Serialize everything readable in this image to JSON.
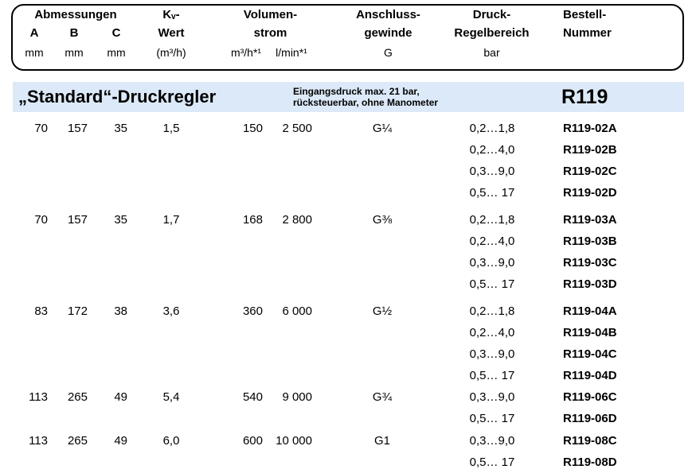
{
  "band": {
    "title": "„Standard“-Druckregler",
    "note_line1": "Eingangsdruck max. 21 bar,",
    "note_line2": "rücksteuerbar, ohne Manometer",
    "series": "R119",
    "bg_color": "#dce9f8"
  },
  "header": {
    "abmessungen": "Abmessungen",
    "dim_a": "A",
    "dim_b": "B",
    "dim_c": "C",
    "dim_a_unit": "mm",
    "dim_b_unit": "mm",
    "dim_c_unit": "mm",
    "kv_line1": "Kᵥ-",
    "kv_line2": "Wert",
    "kv_unit": "(m³/h)",
    "vol_line1": "Volumen-",
    "vol_line2": "strom",
    "vol_unit_m3h": "m³/h*¹",
    "vol_unit_lmin": "l/min*¹",
    "conn_line1": "Anschluss-",
    "conn_line2": "gewinde",
    "conn_unit": "G",
    "druck_line1": "Druck-",
    "druck_line2": "Regelbereich",
    "druck_unit": "bar",
    "best_line1": "Bestell-",
    "best_line2": "Nummer"
  },
  "groups": [
    {
      "A": "70",
      "B": "157",
      "C": "35",
      "kv": "1,5",
      "m3h": "150",
      "lmin": "2 500",
      "g": "G¼",
      "variants": [
        {
          "range": "0,2…1,8",
          "order": "R119-02A"
        },
        {
          "range": "0,2…4,0",
          "order": "R119-02B"
        },
        {
          "range": "0,3…9,0",
          "order": "R119-02C"
        },
        {
          "range": "0,5… 17",
          "order": "R119-02D"
        }
      ]
    },
    {
      "A": "70",
      "B": "157",
      "C": "35",
      "kv": "1,7",
      "m3h": "168",
      "lmin": "2 800",
      "g": "G⅜",
      "variants": [
        {
          "range": "0,2…1,8",
          "order": "R119-03A"
        },
        {
          "range": "0,2…4,0",
          "order": "R119-03B"
        },
        {
          "range": "0,3…9,0",
          "order": "R119-03C"
        },
        {
          "range": "0,5… 17",
          "order": "R119-03D"
        }
      ]
    },
    {
      "A": "83",
      "B": "172",
      "C": "38",
      "kv": "3,6",
      "m3h": "360",
      "lmin": "6 000",
      "g": "G½",
      "variants": [
        {
          "range": "0,2…1,8",
          "order": "R119-04A"
        },
        {
          "range": "0,2…4,0",
          "order": "R119-04B"
        },
        {
          "range": "0,3…9,0",
          "order": "R119-04C"
        },
        {
          "range": "0,5… 17",
          "order": "R119-04D"
        }
      ]
    },
    {
      "A": "113",
      "B": "265",
      "C": "49",
      "kv": "5,4",
      "m3h": "540",
      "lmin": "9 000",
      "g": "G¾",
      "variants": [
        {
          "range": "0,3…9,0",
          "order": "R119-06C"
        },
        {
          "range": "0,5… 17",
          "order": "R119-06D"
        }
      ]
    },
    {
      "A": "113",
      "B": "265",
      "C": "49",
      "kv": "6,0",
      "m3h": "600",
      "lmin": "10 000",
      "g": "G1",
      "variants": [
        {
          "range": "0,3…9,0",
          "order": "R119-08C"
        },
        {
          "range": "0,5… 17",
          "order": "R119-08D"
        }
      ]
    }
  ]
}
